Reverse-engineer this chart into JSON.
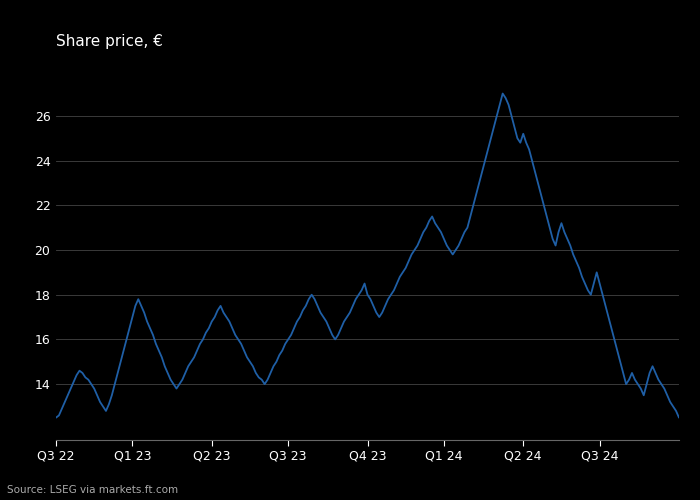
{
  "title": "Share price, €",
  "source": "Source: LSEG via markets.ft.com",
  "line_color": "#1f5fa6",
  "background_color": "#000000",
  "plot_bg_color": "#000000",
  "text_color": "#ffffff",
  "grid_color": "#444444",
  "source_color": "#aaaaaa",
  "ylim": [
    11.5,
    28.5
  ],
  "yticks": [
    14,
    16,
    18,
    20,
    22,
    24,
    26
  ],
  "quarter_labels": [
    "Q3 22",
    "Q1 23",
    "Q2 23",
    "Q3 23",
    "Q4 23",
    "Q1 24",
    "Q2 24",
    "Q3 24"
  ],
  "prices": [
    12.5,
    12.6,
    12.9,
    13.2,
    13.5,
    13.8,
    14.1,
    14.4,
    14.6,
    14.5,
    14.3,
    14.2,
    14.0,
    13.8,
    13.5,
    13.2,
    13.0,
    12.8,
    13.1,
    13.5,
    14.0,
    14.5,
    15.0,
    15.5,
    16.0,
    16.5,
    17.0,
    17.5,
    17.8,
    17.5,
    17.2,
    16.8,
    16.5,
    16.2,
    15.8,
    15.5,
    15.2,
    14.8,
    14.5,
    14.2,
    14.0,
    13.8,
    14.0,
    14.2,
    14.5,
    14.8,
    15.0,
    15.2,
    15.5,
    15.8,
    16.0,
    16.3,
    16.5,
    16.8,
    17.0,
    17.3,
    17.5,
    17.2,
    17.0,
    16.8,
    16.5,
    16.2,
    16.0,
    15.8,
    15.5,
    15.2,
    15.0,
    14.8,
    14.5,
    14.3,
    14.2,
    14.0,
    14.2,
    14.5,
    14.8,
    15.0,
    15.3,
    15.5,
    15.8,
    16.0,
    16.2,
    16.5,
    16.8,
    17.0,
    17.3,
    17.5,
    17.8,
    18.0,
    17.8,
    17.5,
    17.2,
    17.0,
    16.8,
    16.5,
    16.2,
    16.0,
    16.2,
    16.5,
    16.8,
    17.0,
    17.2,
    17.5,
    17.8,
    18.0,
    18.2,
    18.5,
    18.0,
    17.8,
    17.5,
    17.2,
    17.0,
    17.2,
    17.5,
    17.8,
    18.0,
    18.2,
    18.5,
    18.8,
    19.0,
    19.2,
    19.5,
    19.8,
    20.0,
    20.2,
    20.5,
    20.8,
    21.0,
    21.3,
    21.5,
    21.2,
    21.0,
    20.8,
    20.5,
    20.2,
    20.0,
    19.8,
    20.0,
    20.2,
    20.5,
    20.8,
    21.0,
    21.5,
    22.0,
    22.5,
    23.0,
    23.5,
    24.0,
    24.5,
    25.0,
    25.5,
    26.0,
    26.5,
    27.0,
    26.8,
    26.5,
    26.0,
    25.5,
    25.0,
    24.8,
    25.2,
    24.8,
    24.5,
    24.0,
    23.5,
    23.0,
    22.5,
    22.0,
    21.5,
    21.0,
    20.5,
    20.2,
    20.8,
    21.2,
    20.8,
    20.5,
    20.2,
    19.8,
    19.5,
    19.2,
    18.8,
    18.5,
    18.2,
    18.0,
    18.5,
    19.0,
    18.5,
    18.0,
    17.5,
    17.0,
    16.5,
    16.0,
    15.5,
    15.0,
    14.5,
    14.0,
    14.2,
    14.5,
    14.2,
    14.0,
    13.8,
    13.5,
    14.0,
    14.5,
    14.8,
    14.5,
    14.2,
    14.0,
    13.8,
    13.5,
    13.2,
    13.0,
    12.8,
    12.5
  ]
}
